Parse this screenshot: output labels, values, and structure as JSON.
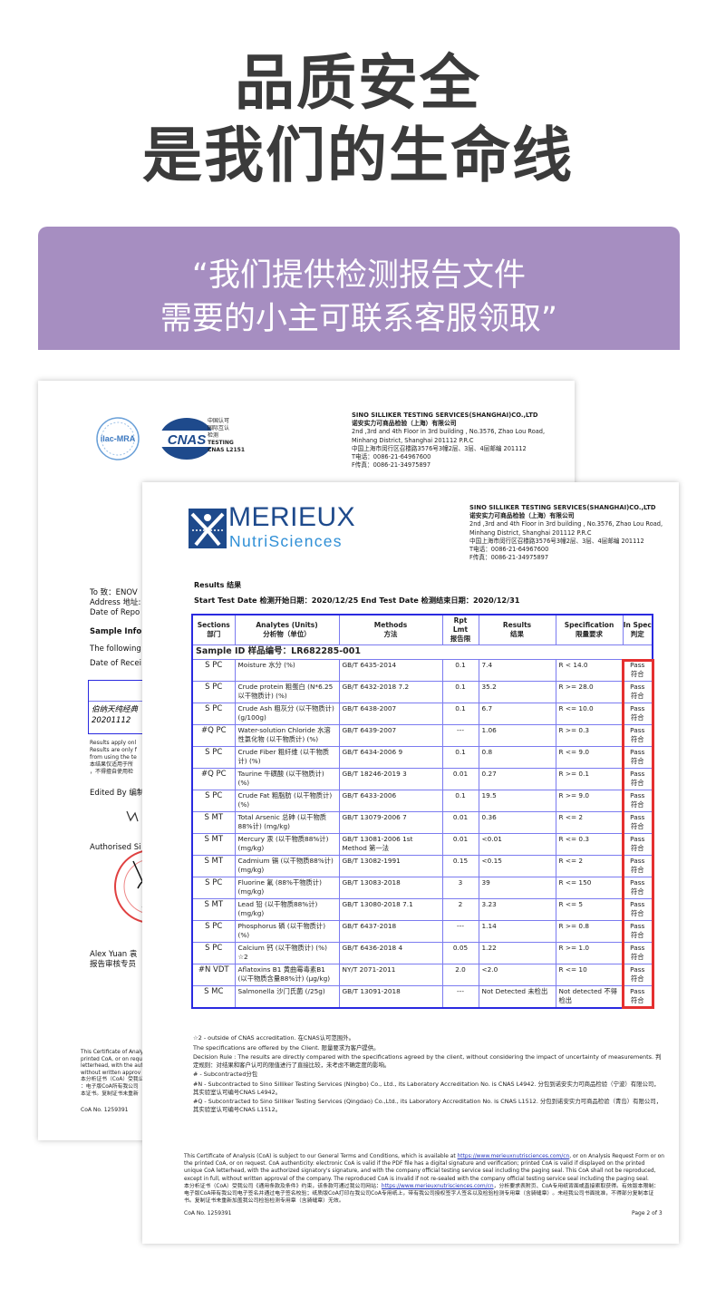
{
  "header": {
    "line1": "品质安全",
    "line2": "是我们的生命线"
  },
  "banner": {
    "line1": "“我们提供检测报告文件",
    "line2": "需要的小主可联系客服领取”",
    "color": "#a68ec1"
  },
  "back_doc": {
    "logos": {
      "ilac": "ilac-MRA",
      "cnas": "CNAS"
    },
    "cnas_label": [
      "中国认可",
      "国际互认",
      "检测",
      "TESTING",
      "CNAS L2151"
    ],
    "company": {
      "name_en": "SINO SILLIKER TESTING SERVICES(SHANGHAI)CO.,LTD",
      "name_cn": "诺安实力可商品检验（上海）有限公司",
      "addr1": "2nd ,3rd and 4th Floor in 3rd building , No.3576, Zhao Lou Road,",
      "addr2": "Minhang District, Shanghai 201112 P.R.C",
      "addr_cn": "中国上海市闵行区召楼路3576号3幢2层、3层、4层邮编 201112",
      "tel": "T电话：0086-21-64967600",
      "fax": "F传真：0086-21-34975897"
    },
    "to": "To 致：ENOV",
    "address": "Address 地址:",
    "date_report": "Date of Repo",
    "sample_info": "Sample Infor",
    "following": "The following",
    "date_receipt": "Date of Recei",
    "sample_name": "伯纳天纯经典",
    "sample_batch": "20201112",
    "results_note": [
      "Results apply onl",
      "Results are only f",
      "from using the te",
      "本结果仅适用于所",
      "，不得擅自使用检"
    ],
    "edited_by": "Edited By 编制",
    "authorised": "Authorised Si",
    "signer": "Alex Yuan 袁",
    "signer_title": "报告审核专员",
    "footer": [
      "This Certificate of Analy",
      "printed CoA, or on requ",
      "letterhead, with the aut",
      "without written approv",
      "本分析证书（CoA）受我公",
      "：电子版CoA所有我公司",
      "本证书。复制证书未重新"
    ],
    "coa_no": "CoA No. 1259391"
  },
  "front_doc": {
    "logo": {
      "line1": "MERIEUX",
      "line2": "NutriSciences"
    },
    "company": {
      "name_en": "SINO SILLIKER TESTING SERVICES(SHANGHAI)CO.,LTD",
      "name_cn": "诺安实力可商品检验（上海）有限公司",
      "addr1": "2nd ,3rd and 4th Floor in 3rd building , No.3576, Zhao Lou Road,",
      "addr2": "Minhang District, Shanghai 201112 P.R.C",
      "addr_cn": "中国上海市闵行区召楼路3576号3幢2层、3层、4层邮编 201112",
      "tel": "T电话：0086-21-64967600",
      "fax": "F传真：0086-21-34975897"
    },
    "results_title": "Results 结果",
    "dates": "Start Test Date 检测开始日期：2020/12/25    End Test Date 检测结束日期：2020/12/31",
    "columns": [
      [
        "Sections",
        "部门"
      ],
      [
        "Analytes (Units)",
        "分析物（单位）"
      ],
      [
        "Methods",
        "方法"
      ],
      [
        "Rpt Lmt",
        "报告限"
      ],
      [
        "Results",
        "结果"
      ],
      [
        "Specification",
        "限量要求"
      ],
      [
        "In Spec",
        "判定"
      ]
    ],
    "sample_id": "Sample ID 样品编号：LR682285-001",
    "rows": [
      [
        "S PC",
        "Moisture 水分 (%)",
        "GB/T 6435-2014",
        "0.1",
        "7.4",
        "R < 14.0",
        "Pass 符合"
      ],
      [
        "S PC",
        "Crude protein 粗蛋白 (N*6.25以干物质计) (%)",
        "GB/T 6432-2018 7.2",
        "0.1",
        "35.2",
        "R >= 28.0",
        "Pass 符合"
      ],
      [
        "S PC",
        "Crude Ash 粗灰分 (以干物质计) (g/100g)",
        "GB/T 6438-2007",
        "0.1",
        "6.7",
        "R <= 10.0",
        "Pass 符合"
      ],
      [
        "#Q PC",
        "Water-solution Chloride 水溶性氯化物 (以干物质计) (%)",
        "GB/T 6439-2007",
        "---",
        "1.06",
        "R >= 0.3",
        "Pass 符合"
      ],
      [
        "S PC",
        "Crude Fiber 粗纤维 (以干物质计) (%)",
        "GB/T 6434-2006 9",
        "0.1",
        "0.8",
        "R <= 9.0",
        "Pass 符合"
      ],
      [
        "#Q PC",
        "Taurine 牛磺酸 (以干物质计) (%)",
        "GB/T 18246-2019 3",
        "0.01",
        "0.27",
        "R >= 0.1",
        "Pass 符合"
      ],
      [
        "S PC",
        "Crude Fat 粗脂肪 (以干物质计) (%)",
        "GB/T 6433-2006",
        "0.1",
        "19.5",
        "R >= 9.0",
        "Pass 符合"
      ],
      [
        "S MT",
        "Total Arsenic 总砷 (以干物质88%计) (mg/kg)",
        "GB/T 13079-2006 7",
        "0.01",
        "0.36",
        "R <= 2",
        "Pass 符合"
      ],
      [
        "S MT",
        "Mercury 汞 (以干物质88%计) (mg/kg)",
        "GB/T 13081-2006 1st Method 第一法",
        "0.01",
        "<0.01",
        "R <= 0.3",
        "Pass 符合"
      ],
      [
        "S MT",
        "Cadmium 镉 (以干物质88%计) (mg/kg)",
        "GB/T 13082-1991",
        "0.15",
        "<0.15",
        "R <= 2",
        "Pass 符合"
      ],
      [
        "S PC",
        "Fluorine 氟 (88%干物质计) (mg/kg)",
        "GB/T 13083-2018",
        "3",
        "39",
        "R <= 150",
        "Pass 符合"
      ],
      [
        "S MT",
        "Lead 铅 (以干物质88%计) (mg/kg)",
        "GB/T 13080-2018 7.1",
        "2",
        "3.23",
        "R <= 5",
        "Pass 符合"
      ],
      [
        "S PC",
        "Phosphorus 磷 (以干物质计) (%)",
        "GB/T 6437-2018",
        "---",
        "1.14",
        "R >= 0.8",
        "Pass 符合"
      ],
      [
        "S PC",
        "Calcium 钙 (以干物质计) (%) ☆2",
        "GB/T 6436-2018 4",
        "0.05",
        "1.22",
        "R >= 1.0",
        "Pass 符合"
      ],
      [
        "#N VDT",
        "Aflatoxins B1 黄曲霉毒素B1 (以干物质含量88%计) (μg/kg)",
        "NY/T 2071-2011",
        "2.0",
        "<2.0",
        "R <= 10",
        "Pass 符合"
      ],
      [
        "S MC",
        "Salmonella 沙门氏菌 (/25g)",
        "GB/T 13091-2018",
        "---",
        "Not Detected 未检出",
        "Not detected 不得检出",
        "Pass 符合"
      ]
    ],
    "notes": [
      "☆2 - outside of CNAS accreditation. 在CNAS认可范围外。",
      "The specifications are offered by the Client. 限量要求为客户提供。",
      "Decision Rule : The results are directly compared with the specifications agreed by the client, without considering the impact of uncertainty of measurements. 判定规则：对结果和客户认可的限值进行了直接比较，未考虑不确定度的影响。",
      "# - Subcontracted分包",
      "#N - Subcontracted to Sino Silliker Testing Services (Ningbo) Co., Ltd., its Laboratory Accreditation No. is CNAS L4942. 分包到诺安实力可商品检验（宁波）有限公司，其实验室认可编号CNAS L4942。",
      "#Q - Subcontracted to Sino Silliker Testing Services (Qingdao) Co.,Ltd., its Laboratory Accreditation No. is CNAS L1512. 分包到诺安实力可商品检验（青岛）有限公司，其实验室认可编号CNAS L1512。"
    ],
    "footer_en_1": "This Certificate of Analysis (CoA) is subject to our General Terms and Conditions, which is available at ",
    "footer_link": "https://www.merieuxnutrisciences.com/cn",
    "footer_en_2": ", or on Analysis Request Form or on the printed CoA, or on request. CoA authenticity: electronic CoA is valid if the PDF file has a digital signature and verification; printed CoA is valid if displayed on the printed unique CoA letterhead, with the authorized signatory's signature, and with the company official testing service seal including the paging seal. This CoA shall not be reproduced, except in full, without written approval of the company. The reproduced CoA is invalid if not re-sealed with the company official testing service seal including the paging seal.",
    "footer_cn_1": "本分析证书（CoA）受我公司《通用条款及条件》约束，该条款可通过我公司网站：",
    "footer_cn_2": "，分析要求表附页、CoA专用纸背面或直接索取获得。有效版本限制：电子版CoA带有我公司电子签名并通过电子签名校验；纸质版CoA打印在我公司CoA专用纸上，带有我公司授权签字人签名以及检验检测专用章（含骑缝章）。未经我公司书面批准，不得部分复制本证书。复制证书未重新加盖我公司检验检测专用章（含骑缝章）无效。",
    "coa_no": "CoA No. 1259391",
    "page": "Page 2 of 3"
  },
  "colors": {
    "title": "#3b3b3b",
    "banner": "#a68ec1",
    "table_border": "#2a2ae0",
    "highlight": "#e53030",
    "logo_blue": "#1e4a8c",
    "logo_light": "#2f8fd6"
  }
}
